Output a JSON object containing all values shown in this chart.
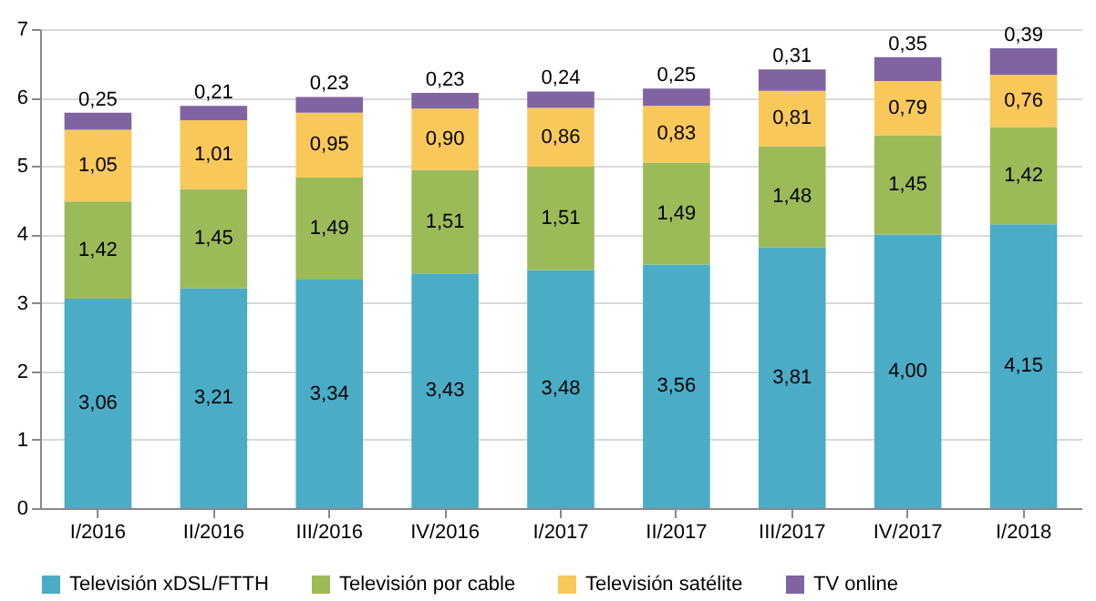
{
  "chart_data": {
    "type": "bar",
    "stacked": true,
    "categories": [
      "I/2016",
      "II/2016",
      "III/2016",
      "IV/2016",
      "I/2017",
      "II/2017",
      "III/2017",
      "IV/2017",
      "I/2018"
    ],
    "series": [
      {
        "name": "Televisión xDSL/FTTH",
        "color": "#4bacc6",
        "values": [
          3.06,
          3.21,
          3.34,
          3.43,
          3.48,
          3.56,
          3.81,
          4.0,
          4.15
        ],
        "value_labels": [
          "3,06",
          "3,21",
          "3,34",
          "3,43",
          "3,48",
          "3,56",
          "3,81",
          "4,00",
          "4,15"
        ]
      },
      {
        "name": "Televisión por cable",
        "color": "#9bbb59",
        "values": [
          1.42,
          1.45,
          1.49,
          1.51,
          1.51,
          1.49,
          1.48,
          1.45,
          1.42
        ],
        "value_labels": [
          "1,42",
          "1,45",
          "1,49",
          "1,51",
          "1,51",
          "1,49",
          "1,48",
          "1,45",
          "1,42"
        ]
      },
      {
        "name": "Televisión satélite",
        "color": "#f9c85b",
        "values": [
          1.05,
          1.01,
          0.95,
          0.9,
          0.86,
          0.83,
          0.81,
          0.79,
          0.76
        ],
        "value_labels": [
          "1,05",
          "1,01",
          "0,95",
          "0,90",
          "0,86",
          "0,83",
          "0,81",
          "0,79",
          "0,76"
        ]
      },
      {
        "name": "TV online",
        "color": "#8064a2",
        "values": [
          0.25,
          0.21,
          0.23,
          0.23,
          0.24,
          0.25,
          0.31,
          0.35,
          0.39
        ],
        "value_labels": [
          "0,25",
          "0,21",
          "0,23",
          "0,23",
          "0,24",
          "0,25",
          "0,31",
          "0,35",
          "0,39"
        ]
      }
    ],
    "ylim": [
      0,
      7
    ],
    "yticks": [
      0,
      1,
      2,
      3,
      4,
      5,
      6,
      7
    ],
    "grid": "y",
    "legend": "bottom"
  }
}
